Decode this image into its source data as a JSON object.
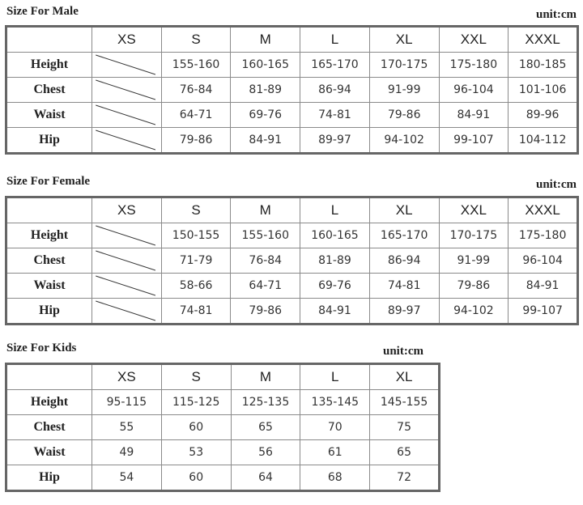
{
  "sections": {
    "male": {
      "title": "Size For Male",
      "unit": "unit:cm",
      "sizes": [
        "XS",
        "S",
        "M",
        "L",
        "XL",
        "XXL",
        "XXXL"
      ],
      "rows": [
        {
          "label": "Height",
          "values": [
            "",
            "155-160",
            "160-165",
            "165-170",
            "170-175",
            "175-180",
            "180-185"
          ]
        },
        {
          "label": "Chest",
          "values": [
            "",
            "76-84",
            "81-89",
            "86-94",
            "91-99",
            "96-104",
            "101-106"
          ]
        },
        {
          "label": "Waist",
          "values": [
            "",
            "64-71",
            "69-76",
            "74-81",
            "79-86",
            "84-91",
            "89-96"
          ]
        },
        {
          "label": "Hip",
          "values": [
            "",
            "79-86",
            "84-91",
            "89-97",
            "94-102",
            "99-107",
            "104-112"
          ]
        }
      ]
    },
    "female": {
      "title": "Size For Female",
      "unit": "unit:cm",
      "sizes": [
        "XS",
        "S",
        "M",
        "L",
        "XL",
        "XXL",
        "XXXL"
      ],
      "rows": [
        {
          "label": "Height",
          "values": [
            "",
            "150-155",
            "155-160",
            "160-165",
            "165-170",
            "170-175",
            "175-180"
          ]
        },
        {
          "label": "Chest",
          "values": [
            "",
            "71-79",
            "76-84",
            "81-89",
            "86-94",
            "91-99",
            "96-104"
          ]
        },
        {
          "label": "Waist",
          "values": [
            "",
            "58-66",
            "64-71",
            "69-76",
            "74-81",
            "79-86",
            "84-91"
          ]
        },
        {
          "label": "Hip",
          "values": [
            "",
            "74-81",
            "79-86",
            "84-91",
            "89-97",
            "94-102",
            "99-107"
          ]
        }
      ]
    },
    "kids": {
      "title": "Size For Kids",
      "unit": "unit:cm",
      "sizes": [
        "XS",
        "S",
        "M",
        "L",
        "XL"
      ],
      "rows": [
        {
          "label": "Height",
          "values": [
            "95-115",
            "115-125",
            "125-135",
            "135-145",
            "145-155"
          ]
        },
        {
          "label": "Chest",
          "values": [
            "55",
            "60",
            "65",
            "70",
            "75"
          ]
        },
        {
          "label": "Waist",
          "values": [
            "49",
            "53",
            "56",
            "61",
            "65"
          ]
        },
        {
          "label": "Hip",
          "values": [
            "54",
            "60",
            "64",
            "68",
            "72"
          ]
        }
      ]
    }
  }
}
